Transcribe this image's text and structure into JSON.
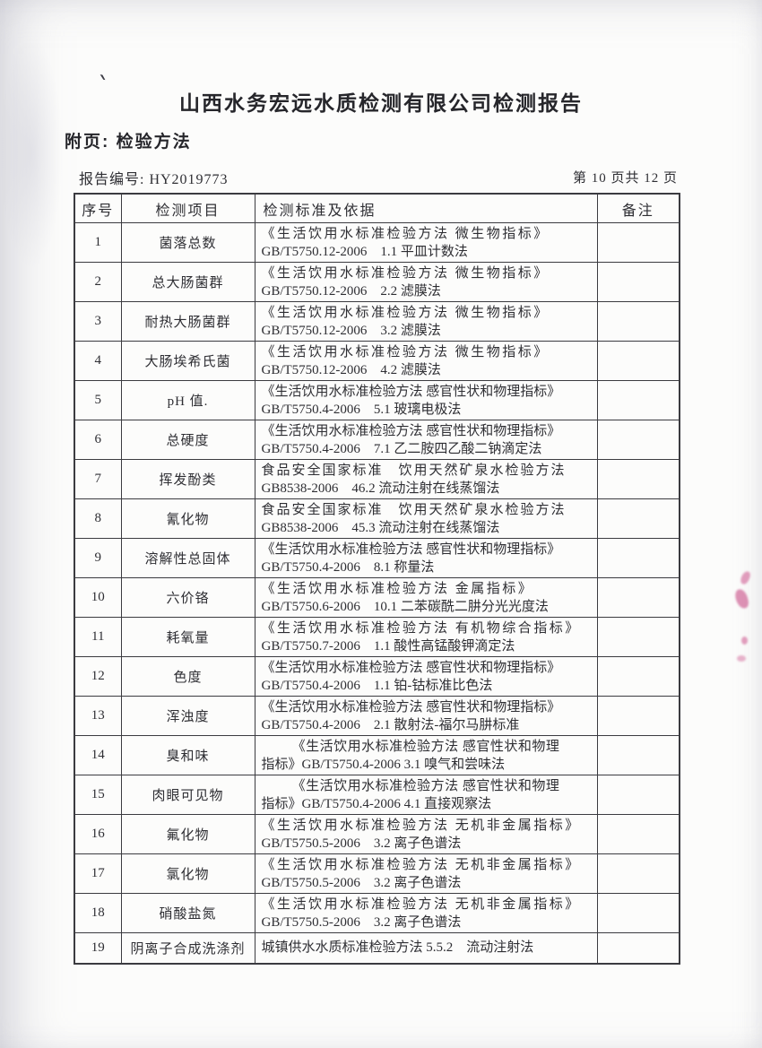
{
  "page": {
    "title": "山西水务宏远水质检测有限公司检测报告",
    "section_heading": "附页: 检验方法",
    "report_no_label": "报告编号: HY2019773",
    "page_indicator": "第 10 页共 12 页"
  },
  "colors": {
    "ink": "#2e2e33",
    "stamp_bleed": "#c42c74"
  },
  "table": {
    "headers": [
      "序号",
      "检测项目",
      "检测标准及依据",
      "备注"
    ],
    "rows": [
      {
        "no": "1",
        "item": "菌落总数",
        "method_lines": [
          "《生活饮用水标准检验方法 微生物指标》",
          "GB/T5750.12-2006　1.1 平皿计数法"
        ],
        "remark": ""
      },
      {
        "no": "2",
        "item": "总大肠菌群",
        "method_lines": [
          "《生活饮用水标准检验方法 微生物指标》",
          "GB/T5750.12-2006　2.2 滤膜法"
        ],
        "remark": ""
      },
      {
        "no": "3",
        "item": "耐热大肠菌群",
        "method_lines": [
          "《生活饮用水标准检验方法 微生物指标》",
          "GB/T5750.12-2006　3.2 滤膜法"
        ],
        "remark": ""
      },
      {
        "no": "4",
        "item": "大肠埃希氏菌",
        "method_lines": [
          "《生活饮用水标准检验方法 微生物指标》",
          "GB/T5750.12-2006　4.2 滤膜法"
        ],
        "remark": ""
      },
      {
        "no": "5",
        "item": "pH 值.",
        "method_lines": [
          "《生活饮用水标准检验方法 感官性状和物理指标》",
          "GB/T5750.4-2006　5.1 玻璃电极法"
        ],
        "remark": ""
      },
      {
        "no": "6",
        "item": "总硬度",
        "method_lines": [
          "《生活饮用水标准检验方法 感官性状和物理指标》",
          "GB/T5750.4-2006　7.1 乙二胺四乙酸二钠滴定法"
        ],
        "remark": ""
      },
      {
        "no": "7",
        "item": "挥发酚类",
        "method_lines": [
          "食品安全国家标准　饮用天然矿泉水检验方法",
          "GB8538-2006　46.2 流动注射在线蒸馏法"
        ],
        "remark": ""
      },
      {
        "no": "8",
        "item": "氰化物",
        "method_lines": [
          "食品安全国家标准　饮用天然矿泉水检验方法",
          "GB8538-2006　45.3 流动注射在线蒸馏法"
        ],
        "remark": ""
      },
      {
        "no": "9",
        "item": "溶解性总固体",
        "method_lines": [
          "《生活饮用水标准检验方法 感官性状和物理指标》",
          "GB/T5750.4-2006　8.1 称量法"
        ],
        "remark": ""
      },
      {
        "no": "10",
        "item": "六价铬",
        "method_lines": [
          "《生活饮用水标准检验方法 金属指标》",
          "GB/T5750.6-2006　10.1 二苯碳酰二肼分光光度法"
        ],
        "remark": ""
      },
      {
        "no": "11",
        "item": "耗氧量",
        "method_lines": [
          "《生活饮用水标准检验方法 有机物综合指标》",
          "GB/T5750.7-2006　1.1 酸性高锰酸钾滴定法"
        ],
        "remark": ""
      },
      {
        "no": "12",
        "item": "色度",
        "method_lines": [
          "《生活饮用水标准检验方法 感官性状和物理指标》",
          "GB/T5750.4-2006　1.1 铂-钴标准比色法"
        ],
        "remark": ""
      },
      {
        "no": "13",
        "item": "浑浊度",
        "method_lines": [
          "《生活饮用水标准检验方法 感官性状和物理指标》",
          "GB/T5750.4-2006　2.1 散射法-福尔马肼标准"
        ],
        "remark": ""
      },
      {
        "no": "14",
        "item": "臭和味",
        "method_lines": [
          "《生活饮用水标准检验方法 感官性状和物理",
          "指标》GB/T5750.4-2006 3.1 嗅气和尝味法"
        ],
        "remark": ""
      },
      {
        "no": "15",
        "item": "肉眼可见物",
        "method_lines": [
          "《生活饮用水标准检验方法 感官性状和物理",
          "指标》GB/T5750.4-2006 4.1 直接观察法"
        ],
        "remark": ""
      },
      {
        "no": "16",
        "item": "氟化物",
        "method_lines": [
          "《生活饮用水标准检验方法 无机非金属指标》",
          "GB/T5750.5-2006　3.2 离子色谱法"
        ],
        "remark": ""
      },
      {
        "no": "17",
        "item": "氯化物",
        "method_lines": [
          "《生活饮用水标准检验方法 无机非金属指标》",
          "GB/T5750.5-2006　3.2 离子色谱法"
        ],
        "remark": ""
      },
      {
        "no": "18",
        "item": "硝酸盐氮",
        "method_lines": [
          "《生活饮用水标准检验方法 无机非金属指标》",
          "GB/T5750.5-2006　3.2 离子色谱法"
        ],
        "remark": ""
      },
      {
        "no": "19",
        "item": "阴离子合成洗涤剂",
        "method_lines": [
          "城镇供水水质标准检验方法 5.5.2　流动注射法"
        ],
        "remark": ""
      }
    ]
  }
}
